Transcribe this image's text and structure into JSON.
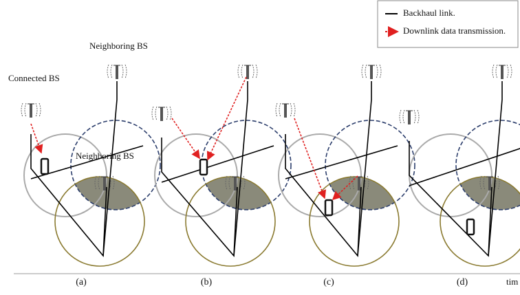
{
  "legend": {
    "items": [
      {
        "label": "Backhaul link."
      },
      {
        "label": "Downlink data transmission."
      }
    ]
  },
  "labels": {
    "neighboring_top": "Neighboring BS",
    "connected": "Connected BS",
    "neighboring_mid": "Neighboring BS",
    "time": "tim"
  },
  "panels": [
    {
      "caption": "(a)"
    },
    {
      "caption": "(b)"
    },
    {
      "caption": "(c)"
    },
    {
      "caption": "(d)"
    }
  ]
}
